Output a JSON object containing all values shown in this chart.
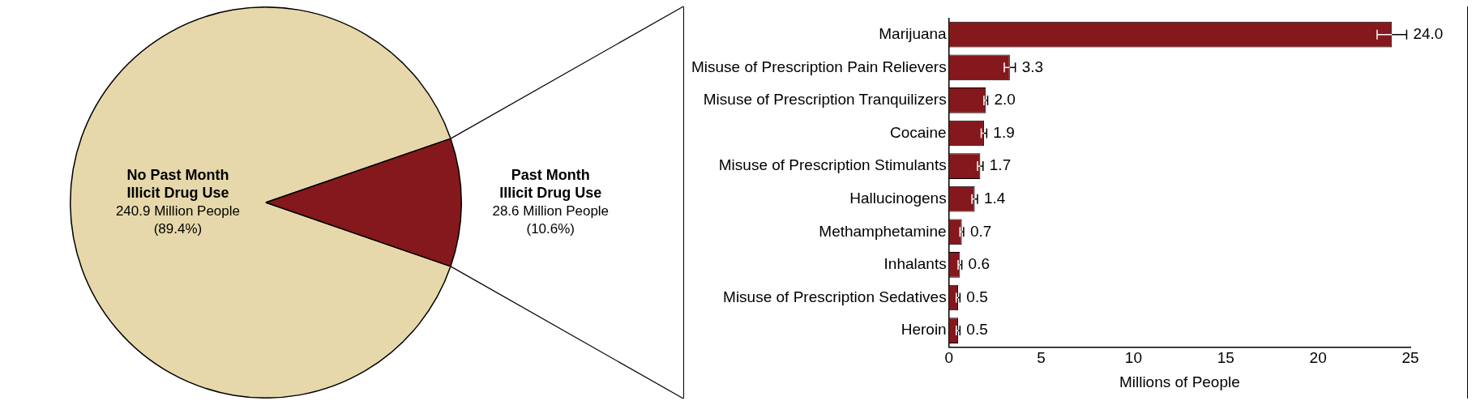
{
  "chart_data": [
    {
      "type": "pie",
      "categories": [
        "No Past Month Illicit Drug Use",
        "Past Month Illicit Drug Use"
      ],
      "values": [
        89.4,
        10.6
      ],
      "colors": [
        "#e6d8aa",
        "#85181c"
      ],
      "value_labels": [
        "240.9 Million People (89.4%)",
        "28.6 Million People (10.6%)"
      ],
      "legend": false
    },
    {
      "type": "bar",
      "orientation": "horizontal",
      "categories": [
        "Marijuana",
        "Misuse of Prescription Pain Relievers",
        "Misuse of Prescription Tranquilizers",
        "Cocaine",
        "Misuse of Prescription Stimulants",
        "Hallucinogens",
        "Methamphetamine",
        "Inhalants",
        "Misuse of Prescription Sedatives",
        "Heroin"
      ],
      "values": [
        24.0,
        3.3,
        2.0,
        1.9,
        1.7,
        1.4,
        0.7,
        0.6,
        0.5,
        0.5
      ],
      "errors": [
        0.8,
        0.3,
        0.1,
        0.15,
        0.15,
        0.15,
        0.1,
        0.1,
        0.1,
        0.1
      ],
      "value_labels": [
        "24.0",
        "3.3",
        "2.0",
        "1.9",
        "1.7",
        "1.4",
        "0.7",
        "0.6",
        "0.5",
        "0.5"
      ],
      "color": "#85181c",
      "xlim": [
        0,
        25
      ],
      "xticks": [
        0,
        5,
        10,
        15,
        20,
        25
      ],
      "xlabel": "Millions of People",
      "legend": false,
      "grid": false
    }
  ]
}
